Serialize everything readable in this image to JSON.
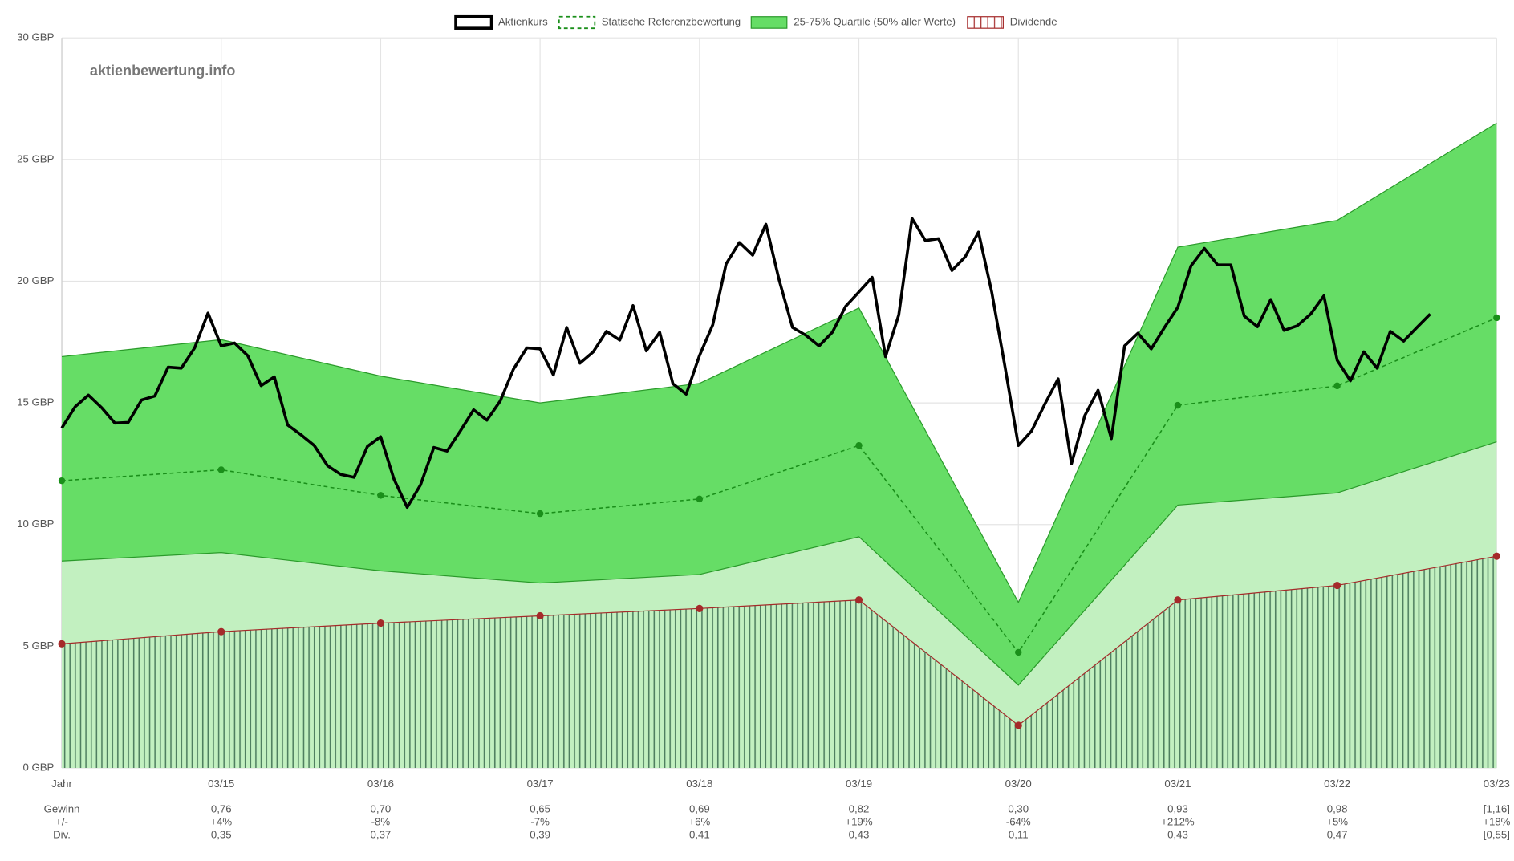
{
  "chart_data": {
    "type": "valuation",
    "watermark": "aktienbewertung.info",
    "categories": [
      "Jahr",
      "03/15",
      "03/16",
      "03/17",
      "03/18",
      "03/19",
      "03/20",
      "03/21",
      "03/22",
      "03/23"
    ],
    "ylim": [
      0,
      30
    ],
    "yticks": [
      {
        "value": 0,
        "label": "0 GBP"
      },
      {
        "value": 5,
        "label": "5 GBP"
      },
      {
        "value": 10,
        "label": "10 GBP"
      },
      {
        "value": 15,
        "label": "15 GBP"
      },
      {
        "value": 20,
        "label": "20 GBP"
      },
      {
        "value": 25,
        "label": "25 GBP"
      },
      {
        "value": 30,
        "label": "30 GBP"
      }
    ],
    "grid": true,
    "price": {
      "name": "Aktienkurs",
      "color": "#000000",
      "values": [
        13.97,
        14.84,
        15.32,
        14.8,
        14.17,
        14.2,
        15.12,
        15.28,
        16.47,
        16.43,
        17.26,
        18.69,
        17.34,
        17.46,
        16.94,
        15.71,
        16.07,
        14.09,
        13.69,
        13.25,
        12.42,
        12.06,
        11.94,
        13.21,
        13.61,
        11.87,
        10.71,
        11.63,
        13.17,
        13.02,
        13.85,
        14.72,
        14.29,
        15.08,
        16.39,
        17.26,
        17.22,
        16.15,
        18.1,
        16.63,
        17.1,
        17.94,
        17.58,
        19.0,
        17.14,
        17.9,
        15.79,
        15.36,
        16.94,
        18.21,
        20.71,
        21.59,
        21.07,
        22.34,
        20.04,
        18.1,
        17.78,
        17.34,
        17.9,
        18.97,
        19.56,
        20.16,
        16.9,
        18.61,
        22.58,
        21.67,
        21.75,
        20.44,
        21.0,
        22.02,
        19.56,
        16.47,
        13.25,
        13.85,
        14.96,
        15.99,
        12.5,
        14.48,
        15.52,
        13.53,
        17.34,
        17.86,
        17.22,
        18.1,
        18.93,
        20.63,
        21.35,
        20.67,
        20.67,
        18.57,
        18.13,
        19.25,
        17.98,
        18.17,
        18.65,
        19.4,
        16.75,
        15.91,
        17.1,
        16.43,
        17.94,
        17.54,
        18.1,
        18.65
      ]
    },
    "reference": {
      "name": "Statische Referenzbewertung",
      "color": "#1a8f1a",
      "values": [
        11.8,
        12.25,
        11.2,
        10.45,
        11.05,
        13.25,
        4.75,
        14.9,
        15.7,
        18.5
      ]
    },
    "quartile": {
      "name": "25-75% Quartile (50% aller Werte)",
      "color": "#66dd66",
      "lower_color": "#c2f0c0",
      "upper": [
        16.9,
        17.6,
        16.1,
        15.0,
        15.8,
        18.9,
        6.8,
        21.4,
        22.5,
        26.5
      ],
      "lower": [
        8.5,
        8.85,
        8.1,
        7.6,
        7.95,
        9.5,
        3.4,
        10.8,
        11.3,
        13.4
      ]
    },
    "dividend": {
      "name": "Dividende",
      "color": "#a52a2a",
      "values": [
        5.1,
        5.6,
        5.95,
        6.25,
        6.55,
        6.9,
        1.75,
        6.9,
        7.5,
        8.7
      ]
    },
    "table": [
      {
        "label": "Gewinn",
        "values": [
          "0,76",
          "0,70",
          "0,65",
          "0,69",
          "0,82",
          "0,30",
          "0,93",
          "0,98",
          "[1,16]"
        ]
      },
      {
        "label": "+/-",
        "values": [
          "+4%",
          "-8%",
          "-7%",
          "+6%",
          "+19%",
          "-64%",
          "+212%",
          "+5%",
          "+18%"
        ]
      },
      {
        "label": "Div.",
        "values": [
          "0,35",
          "0,37",
          "0,39",
          "0,41",
          "0,43",
          "0,11",
          "0,43",
          "0,47",
          "[0,55]"
        ]
      }
    ]
  }
}
